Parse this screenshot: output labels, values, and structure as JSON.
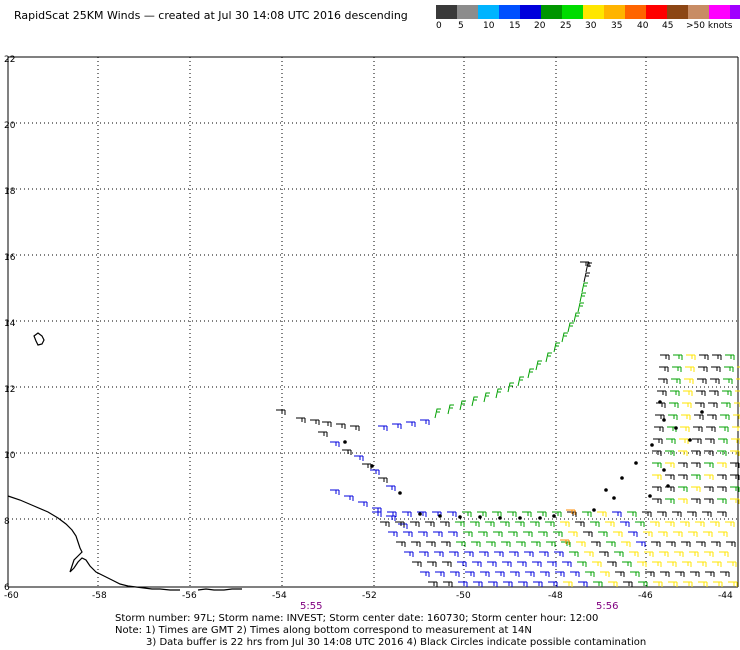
{
  "header": {
    "title": "RapidScat 25KM Winds — created at Jul 30 14:08 UTC 2016 descending"
  },
  "legend": {
    "colors": [
      "#3a3a3a",
      "#8c8c8c",
      "#00b4ff",
      "#0050ff",
      "#0000dc",
      "#009600",
      "#00dc00",
      "#ffe600",
      "#ffb400",
      "#ff6400",
      "#ff0000",
      "#8c4614",
      "#c88c64",
      "#ff00ff",
      "#a000ff",
      "#500096"
    ],
    "labels": [
      "0",
      "5",
      "10",
      "15",
      "20",
      "25",
      "30",
      "35",
      "40",
      "45",
      ">50 knots"
    ]
  },
  "axes": {
    "x_labels": [
      "-60",
      "-58",
      "-56",
      "-54",
      "-52",
      "-50",
      "-48",
      "-46",
      "-44"
    ],
    "y_labels": [
      "6",
      "8",
      "10",
      "12",
      "14",
      "16",
      "18",
      "20",
      "22"
    ]
  },
  "times": [
    "5:55",
    "5:56"
  ],
  "footer": {
    "line1": "Storm number: 97L;  Storm name: INVEST;  Storm center date: 160730;  Storm center hour: 12:00",
    "line2": "Note: 1) Times are GMT  2) Times along bottom correspond to measurement at 14N",
    "line3": "3) Data buffer is 22 hrs from Jul 30 14:08 UTC 2016   4) Black Circles indicate possible contamination"
  },
  "colors": {
    "grid": "#000000",
    "time_label": "#800080",
    "wind_black": "#000000",
    "wind_blue": "#0000dc",
    "wind_green": "#00a000",
    "wind_yellow": "#ffe600",
    "wind_orange": "#ff8c00"
  }
}
